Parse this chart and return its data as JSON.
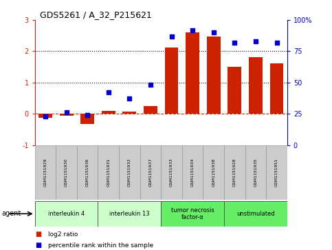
{
  "title": "GDS5261 / A_32_P215621",
  "samples": [
    "GSM1151929",
    "GSM1151930",
    "GSM1151936",
    "GSM1151931",
    "GSM1151932",
    "GSM1151937",
    "GSM1151933",
    "GSM1151934",
    "GSM1151938",
    "GSM1151928",
    "GSM1151935",
    "GSM1151951"
  ],
  "log2_ratio": [
    -0.13,
    -0.07,
    -0.32,
    0.09,
    0.06,
    0.25,
    2.12,
    2.6,
    2.47,
    1.5,
    1.8,
    1.62
  ],
  "percentile_rank": [
    23,
    26,
    24,
    42,
    37,
    48,
    87,
    92,
    90,
    82,
    83,
    82
  ],
  "bar_color": "#cc2200",
  "dot_color": "#0000cc",
  "zero_line_color": "#cc2200",
  "groups": [
    {
      "label": "interleukin 4",
      "start": 0,
      "end": 3,
      "color": "#ccffcc"
    },
    {
      "label": "interleukin 13",
      "start": 3,
      "end": 6,
      "color": "#ccffcc"
    },
    {
      "label": "tumor necrosis\nfactor-α",
      "start": 6,
      "end": 9,
      "color": "#66ee66"
    },
    {
      "label": "unstimulated",
      "start": 9,
      "end": 12,
      "color": "#66ee66"
    }
  ],
  "ylim_left": [
    -1,
    3
  ],
  "ylim_right": [
    0,
    100
  ],
  "yticks_left": [
    -1,
    0,
    1,
    2,
    3
  ],
  "yticks_right": [
    0,
    25,
    50,
    75,
    100
  ],
  "ytick_labels_right": [
    "0",
    "25",
    "50",
    "75",
    "100%"
  ],
  "hlines": [
    1.0,
    2.0
  ],
  "background_color": "#ffffff",
  "plot_bg_color": "#ffffff",
  "agent_label": "agent",
  "legend_items": [
    {
      "color": "#cc2200",
      "label": "log2 ratio"
    },
    {
      "color": "#0000cc",
      "label": "percentile rank within the sample"
    }
  ]
}
